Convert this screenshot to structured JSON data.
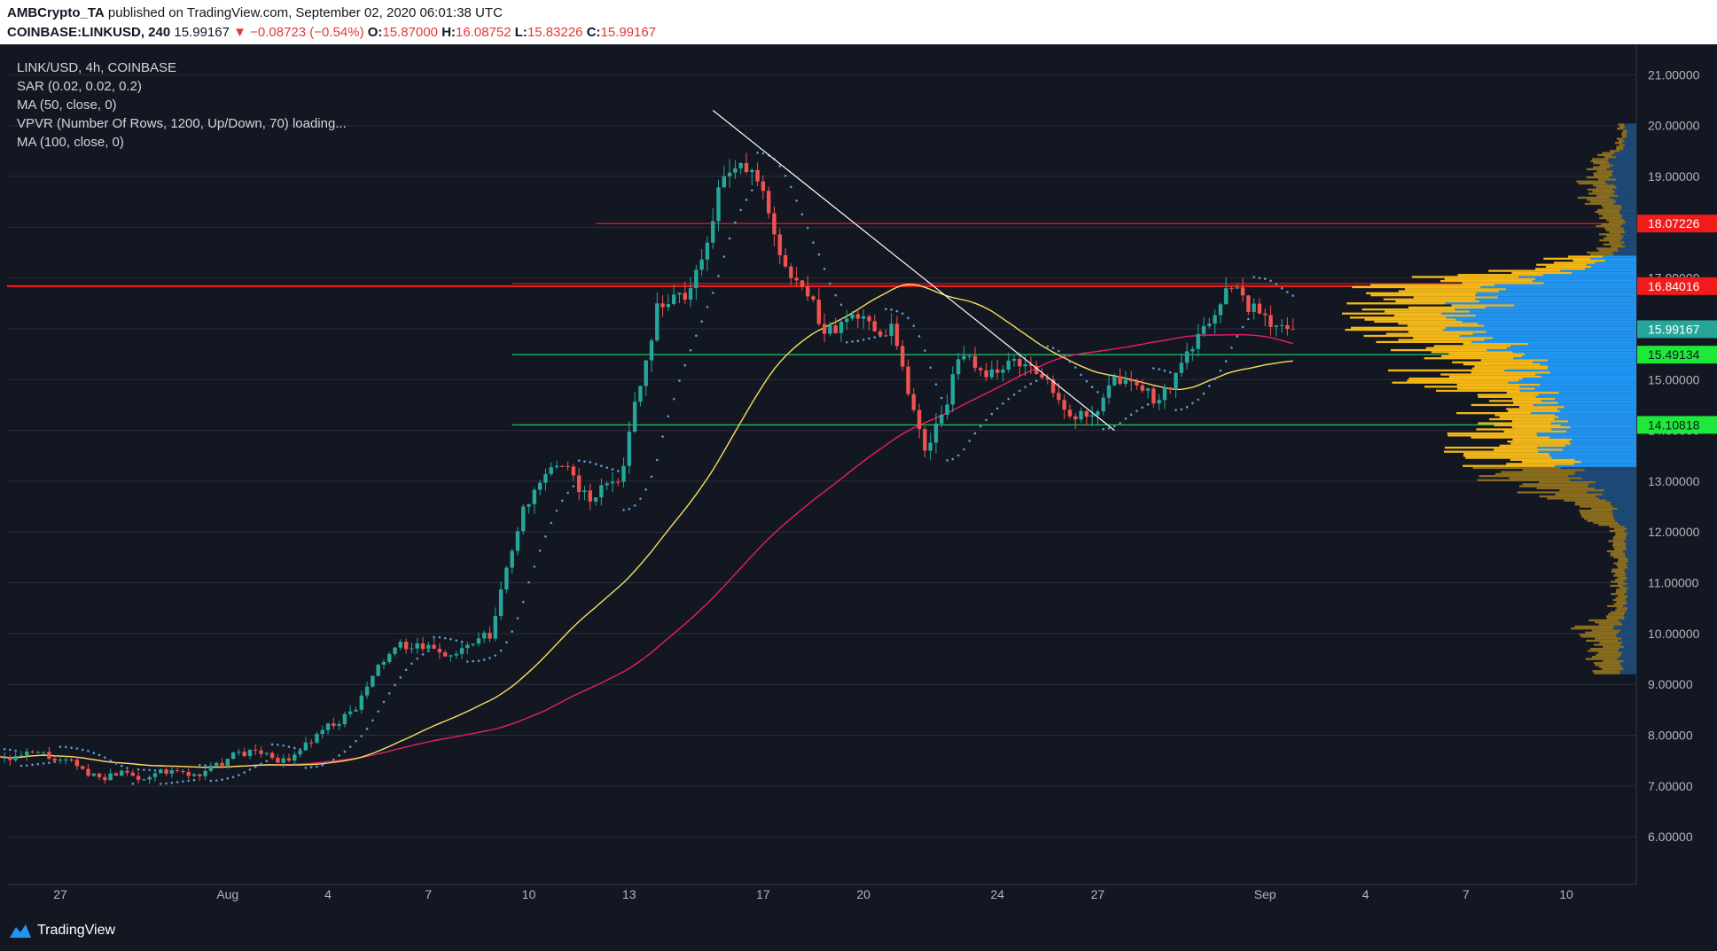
{
  "header": {
    "publisher": "AMBCrypto_TA",
    "published_text": "published on TradingView.com, September 02, 2020 06:01:38 UTC",
    "symbol": "COINBASE:LINKUSD, 240",
    "last": "15.99167",
    "change": "−0.08723 (−0.54%)",
    "o_label": "O:",
    "o_value": "15.87000",
    "h_label": "H:",
    "h_value": "16.08752",
    "l_label": "L:",
    "l_value": "15.83226",
    "c_label": "C:",
    "c_value": "15.99167"
  },
  "legend": {
    "title": "LINK/USD, 4h, COINBASE",
    "indicators": [
      "SAR (0.02, 0.02, 0.2)",
      "MA (50, close, 0)",
      "VPVR (Number Of Rows, 1200, Up/Down, 70) loading...",
      "MA (100, close, 0)"
    ]
  },
  "footer": {
    "brand": "TradingView",
    "logo_icon": "tradingview-logo-icon"
  },
  "colors": {
    "background": "#131722",
    "up": "#26a69a",
    "down": "#ef5350",
    "ma50": "#f6e05e",
    "ma100": "#e91e63",
    "sar": "#5b9bd5",
    "resistance": "#ff1a1a",
    "support": "#22c55e",
    "trendline": "#ffffff",
    "vpvr_up": "#f5b817",
    "vpvr_down": "#2196f3"
  },
  "chart_data": {
    "type": "candlestick",
    "ylim": [
      5.2,
      21.6
    ],
    "y_ticks": [
      "6.00000",
      "7.00000",
      "8.00000",
      "9.00000",
      "10.00000",
      "11.00000",
      "12.00000",
      "13.00000",
      "14.00000",
      "15.00000",
      "16.00000",
      "17.00000",
      "18.00000",
      "19.00000",
      "20.00000",
      "21.00000"
    ],
    "x_ticks": [
      {
        "label": "27",
        "date": "2020-07-27"
      },
      {
        "label": "Aug",
        "date": "2020-08-01"
      },
      {
        "label": "4",
        "date": "2020-08-04"
      },
      {
        "label": "7",
        "date": "2020-08-07"
      },
      {
        "label": "10",
        "date": "2020-08-10"
      },
      {
        "label": "13",
        "date": "2020-08-13"
      },
      {
        "label": "17",
        "date": "2020-08-17"
      },
      {
        "label": "20",
        "date": "2020-08-20"
      },
      {
        "label": "24",
        "date": "2020-08-24"
      },
      {
        "label": "27",
        "date": "2020-08-27"
      },
      {
        "label": "Sep",
        "date": "2020-09-01"
      },
      {
        "label": "4",
        "date": "2020-09-04"
      },
      {
        "label": "7",
        "date": "2020-09-07"
      },
      {
        "label": "10",
        "date": "2020-09-10"
      }
    ],
    "price_levels": [
      {
        "value": 18.07226,
        "label": "18.07226",
        "kind": "resistance"
      },
      {
        "value": 16.84016,
        "label": "16.84016",
        "kind": "resistance"
      },
      {
        "value": 15.99167,
        "label": "15.99167",
        "kind": "last"
      },
      {
        "value": 15.49134,
        "label": "15.49134",
        "kind": "support"
      },
      {
        "value": 14.10818,
        "label": "14.10818",
        "kind": "support"
      }
    ],
    "trendline": [
      {
        "x": "2020-08-15 12:00",
        "y": 20.3
      },
      {
        "x": "2020-08-27 12:00",
        "y": 14.0
      }
    ],
    "daily_close": [
      {
        "date": "2020-07-25",
        "close": 7.6
      },
      {
        "date": "2020-07-26",
        "close": 7.5
      },
      {
        "date": "2020-07-27",
        "close": 7.2
      },
      {
        "date": "2020-07-28",
        "close": 7.3
      },
      {
        "date": "2020-07-29",
        "close": 7.25
      },
      {
        "date": "2020-07-30",
        "close": 7.2
      },
      {
        "date": "2020-07-31",
        "close": 7.4
      },
      {
        "date": "2020-08-01",
        "close": 7.7
      },
      {
        "date": "2020-08-02",
        "close": 7.5
      },
      {
        "date": "2020-08-03",
        "close": 8.1
      },
      {
        "date": "2020-08-04",
        "close": 8.5
      },
      {
        "date": "2020-08-05",
        "close": 9.6
      },
      {
        "date": "2020-08-06",
        "close": 9.7
      },
      {
        "date": "2020-08-07",
        "close": 9.6
      },
      {
        "date": "2020-08-08",
        "close": 9.9
      },
      {
        "date": "2020-08-09",
        "close": 12.5
      },
      {
        "date": "2020-08-10",
        "close": 13.3
      },
      {
        "date": "2020-08-11",
        "close": 12.6
      },
      {
        "date": "2020-08-12",
        "close": 13.3
      },
      {
        "date": "2020-08-13",
        "close": 16.5
      },
      {
        "date": "2020-08-14",
        "close": 16.8
      },
      {
        "date": "2020-08-15",
        "close": 19.0
      },
      {
        "date": "2020-08-16",
        "close": 18.9
      },
      {
        "date": "2020-08-17",
        "close": 17.0
      },
      {
        "date": "2020-08-18",
        "close": 15.9
      },
      {
        "date": "2020-08-19",
        "close": 16.2
      },
      {
        "date": "2020-08-20",
        "close": 16.1
      },
      {
        "date": "2020-08-21",
        "close": 13.6
      },
      {
        "date": "2020-08-22",
        "close": 15.4
      },
      {
        "date": "2020-08-23",
        "close": 15.2
      },
      {
        "date": "2020-08-24",
        "close": 15.3
      },
      {
        "date": "2020-08-25",
        "close": 14.6
      },
      {
        "date": "2020-08-26",
        "close": 14.3
      },
      {
        "date": "2020-08-27",
        "close": 15.0
      },
      {
        "date": "2020-08-28",
        "close": 14.6
      },
      {
        "date": "2020-08-29",
        "close": 15.6
      },
      {
        "date": "2020-08-30",
        "close": 16.8
      },
      {
        "date": "2020-08-31",
        "close": 16.3
      },
      {
        "date": "2020-09-01",
        "close": 15.99
      }
    ],
    "vpvr_profile": [
      {
        "price": 9.8,
        "up": 0.1,
        "down": 0.06
      },
      {
        "price": 10.0,
        "up": 0.15,
        "down": 0.08
      },
      {
        "price": 10.4,
        "up": 0.05,
        "down": 0.04
      },
      {
        "price": 11.0,
        "up": 0.04,
        "down": 0.04
      },
      {
        "price": 11.5,
        "up": 0.05,
        "down": 0.04
      },
      {
        "price": 12.0,
        "up": 0.05,
        "down": 0.04
      },
      {
        "price": 12.5,
        "up": 0.14,
        "down": 0.1
      },
      {
        "price": 13.0,
        "up": 0.28,
        "down": 0.2
      },
      {
        "price": 13.6,
        "up": 0.3,
        "down": 0.32
      },
      {
        "price": 14.1,
        "up": 0.28,
        "down": 0.32
      },
      {
        "price": 14.6,
        "up": 0.2,
        "down": 0.38
      },
      {
        "price": 15.0,
        "up": 0.4,
        "down": 0.4
      },
      {
        "price": 15.5,
        "up": 0.3,
        "down": 0.45
      },
      {
        "price": 16.0,
        "up": 0.3,
        "down": 0.6
      },
      {
        "price": 16.5,
        "up": 0.3,
        "down": 0.58
      },
      {
        "price": 16.84,
        "up": 0.42,
        "down": 0.48
      },
      {
        "price": 17.2,
        "up": 0.2,
        "down": 0.2
      },
      {
        "price": 17.6,
        "up": 0.06,
        "down": 0.05
      },
      {
        "price": 18.07,
        "up": 0.08,
        "down": 0.05
      },
      {
        "price": 18.5,
        "up": 0.1,
        "down": 0.08
      },
      {
        "price": 18.8,
        "up": 0.1,
        "down": 0.1
      },
      {
        "price": 19.2,
        "up": 0.06,
        "down": 0.1
      },
      {
        "price": 19.7,
        "up": 0.02,
        "down": 0.04
      }
    ]
  }
}
